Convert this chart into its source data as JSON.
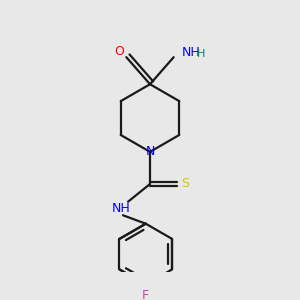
{
  "bg_color": "#e8e8e8",
  "bond_color": "#1a1a1a",
  "O_color": "#ff0000",
  "N_color": "#0000ff",
  "S_color": "#cccc00",
  "F_color": "#cc44aa",
  "H_color": "#008080",
  "lw": 1.6,
  "xlim": [
    0,
    3
  ],
  "ylim": [
    0,
    3.2
  ]
}
